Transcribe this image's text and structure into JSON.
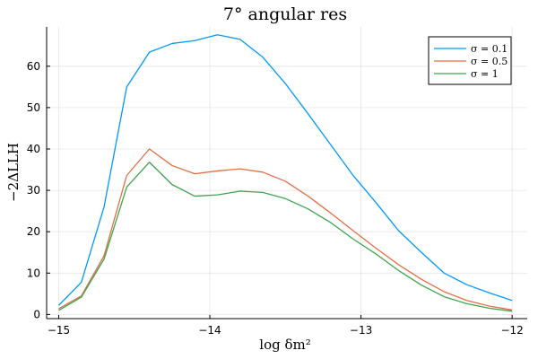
{
  "chart_data": {
    "type": "line",
    "title": "7° angular res",
    "xlabel": "log δm²",
    "ylabel": "−2ΔLLH",
    "xlim": [
      -15.08,
      -11.9
    ],
    "ylim": [
      -1.0,
      69.5
    ],
    "xticks": [
      -15,
      -14,
      -13,
      -12
    ],
    "xtick_labels": [
      "−15",
      "−14",
      "−13",
      "−12"
    ],
    "yticks": [
      0,
      10,
      20,
      30,
      40,
      50,
      60
    ],
    "ytick_labels": [
      "0",
      "10",
      "20",
      "30",
      "40",
      "50",
      "60"
    ],
    "grid": true,
    "legend_position": "top-right",
    "x": [
      -15,
      -14.85,
      -14.7,
      -14.55,
      -14.4,
      -14.25,
      -14.1,
      -13.95,
      -13.8,
      -13.65,
      -13.5,
      -13.35,
      -13.2,
      -13.05,
      -12.9,
      -12.75,
      -12.6,
      -12.45,
      -12.3,
      -12.15,
      -12
    ],
    "series": [
      {
        "name": "σ = 0.1",
        "color": "#009af9",
        "values": [
          2.2,
          7.8,
          26.0,
          55.0,
          63.4,
          65.5,
          66.2,
          67.6,
          66.5,
          62.2,
          55.8,
          48.5,
          41.0,
          33.5,
          27.0,
          20.2,
          15.0,
          10.0,
          7.2,
          5.2,
          3.4
        ]
      },
      {
        "name": "σ = 0.5",
        "color": "#e26f46",
        "values": [
          1.4,
          4.5,
          14.2,
          33.6,
          40.0,
          36.0,
          34.0,
          34.7,
          35.2,
          34.4,
          32.2,
          28.6,
          24.5,
          20.2,
          16.0,
          12.0,
          8.5,
          5.5,
          3.4,
          2.0,
          1.1
        ]
      },
      {
        "name": "σ = 1",
        "color": "#3da44d",
        "values": [
          1.0,
          4.2,
          13.4,
          30.8,
          36.8,
          31.4,
          28.6,
          28.9,
          29.8,
          29.5,
          28.0,
          25.5,
          22.2,
          18.2,
          14.6,
          10.6,
          7.1,
          4.3,
          2.6,
          1.5,
          0.8
        ]
      }
    ]
  }
}
